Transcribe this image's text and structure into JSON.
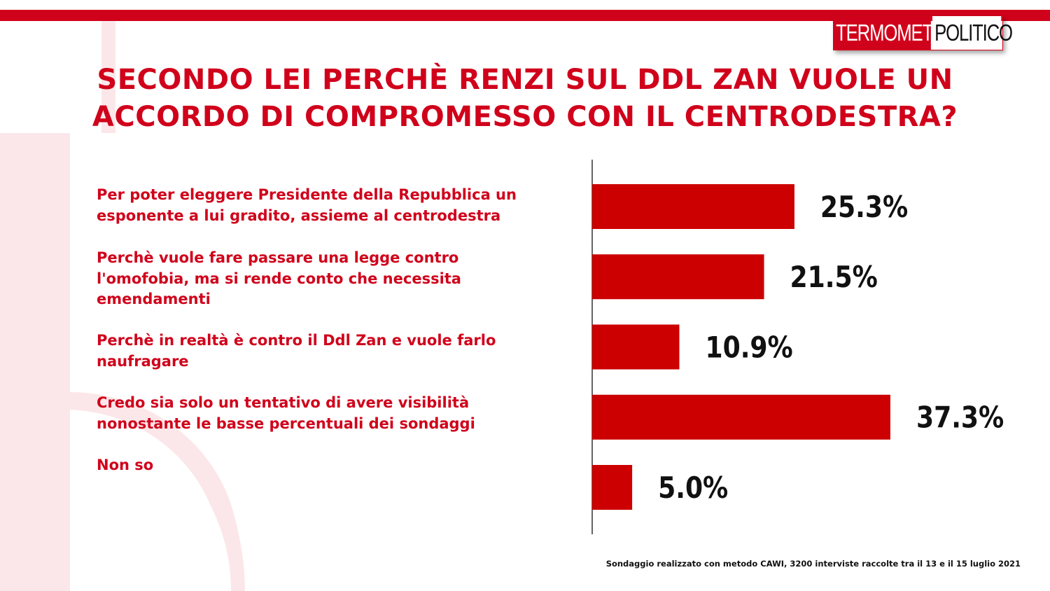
{
  "brand": {
    "logo_part1": "TERMOMETRO",
    "logo_part2": "POLITICO",
    "accent_color": "#d0021b"
  },
  "title": {
    "line1": "SECONDO LEI PERCHÈ RENZI SUL DDL ZAN VUOLE UN",
    "line2": "ACCORDO DI COMPROMESSO CON IL CENTRODESTRA?"
  },
  "chart_data": {
    "type": "bar",
    "orientation": "horizontal",
    "categories": [
      "Per poter eleggere Presidente della Repubblica un esponente a lui gradito, assieme al centrodestra",
      "Perchè vuole fare passare una legge contro l'omofobia, ma si rende conto che necessita emendamenti",
      "Perchè in realtà è contro il Ddl Zan e vuole farlo naufragare",
      "Credo sia solo un tentativo di avere visibilità nonostante le basse percentuali dei sondaggi",
      "Non so"
    ],
    "category_lines": [
      [
        "Per poter eleggere Presidente della Repubblica un",
        "esponente a lui gradito, assieme al centrodestra"
      ],
      [
        "Perchè vuole fare passare una legge contro",
        "l'omofobia, ma si rende conto che necessita",
        "emendamenti"
      ],
      [
        "Perchè in realtà è contro il Ddl Zan e vuole farlo",
        "naufragare"
      ],
      [
        "Credo sia solo un tentativo di avere visibilità",
        "nonostante le basse percentuali dei sondaggi"
      ],
      [
        "Non so"
      ]
    ],
    "values": [
      25.3,
      21.5,
      10.9,
      37.3,
      5.0
    ],
    "data_labels": [
      "25.3%",
      "21.5%",
      "10.9%",
      "37.3%",
      "5.0%"
    ],
    "unit": "%",
    "bar_color": "#cc0000",
    "grid": false,
    "legend": "none"
  },
  "footnote": "Sondaggio realizzato con metodo CAWI, 3200 interviste raccolte tra il 13 e il 15 luglio 2021"
}
